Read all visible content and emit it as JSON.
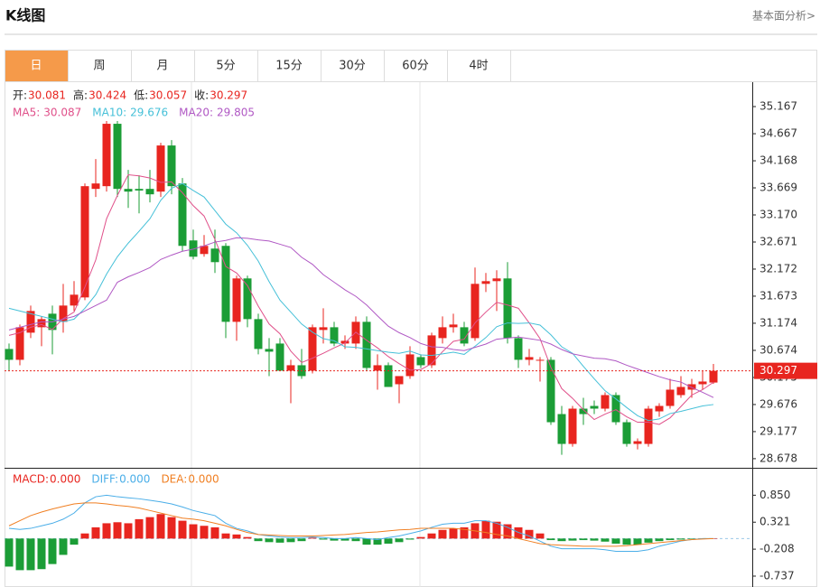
{
  "header": {
    "title": "K线图",
    "link": "基本面分析>"
  },
  "tabs": {
    "items": [
      "日",
      "周",
      "月",
      "5分",
      "15分",
      "30分",
      "60分",
      "4时"
    ],
    "active": 0
  },
  "chart_data": [
    {
      "type": "candlestick",
      "info": [
        {
          "label": "开:",
          "value": 30.081
        },
        {
          "label": "高:",
          "value": 30.424
        },
        {
          "label": "低:",
          "value": 30.057
        },
        {
          "label": "收:",
          "value": 30.297
        }
      ],
      "up_color": "#e8251f",
      "down_color": "#1b9d36",
      "open": [
        30.7,
        30.5,
        31.0,
        31.1,
        31.35,
        31.2,
        31.5,
        31.65,
        33.65,
        33.7,
        34.85,
        33.65,
        33.65,
        33.65,
        33.6,
        34.45,
        33.75,
        32.7,
        32.45,
        32.55,
        32.6,
        31.2,
        32.0,
        31.25,
        30.7,
        30.8,
        30.3,
        30.4,
        30.3,
        31.05,
        31.1,
        30.8,
        30.8,
        31.2,
        30.3,
        30.4,
        30.05,
        30.2,
        30.55,
        30.4,
        30.9,
        31.1,
        31.1,
        30.9,
        31.9,
        31.95,
        32.0,
        30.9,
        30.5,
        30.5,
        30.5,
        29.5,
        28.95,
        29.6,
        29.65,
        29.6,
        29.85,
        29.35,
        28.95,
        28.95,
        29.55,
        29.65,
        29.85,
        29.95,
        30.05,
        30.081
      ],
      "high": [
        30.8,
        31.15,
        31.5,
        31.3,
        31.5,
        31.9,
        31.95,
        33.75,
        34.2,
        34.9,
        34.9,
        34.0,
        33.9,
        34.0,
        34.5,
        34.55,
        33.85,
        32.9,
        32.8,
        32.9,
        32.65,
        32.05,
        32.05,
        31.35,
        30.9,
        30.9,
        30.5,
        30.7,
        31.15,
        31.45,
        31.2,
        30.95,
        31.3,
        31.3,
        30.6,
        30.45,
        30.2,
        30.75,
        30.6,
        31.0,
        31.3,
        31.35,
        31.2,
        32.2,
        32.1,
        32.15,
        32.3,
        30.95,
        30.7,
        30.55,
        30.55,
        29.65,
        29.65,
        29.8,
        29.75,
        29.9,
        29.9,
        29.4,
        29.05,
        29.65,
        29.7,
        30.15,
        30.2,
        30.15,
        30.3,
        30.424
      ],
      "low": [
        30.3,
        30.4,
        30.9,
        30.75,
        30.6,
        31.0,
        31.4,
        31.6,
        33.5,
        33.6,
        33.5,
        33.3,
        33.2,
        33.4,
        33.5,
        33.55,
        32.5,
        32.35,
        32.4,
        32.1,
        30.9,
        30.85,
        31.1,
        30.6,
        30.2,
        30.3,
        29.7,
        30.15,
        30.25,
        30.8,
        30.75,
        30.7,
        30.7,
        30.3,
        29.95,
        30.0,
        29.7,
        30.15,
        30.35,
        30.35,
        30.8,
        31.0,
        30.75,
        30.85,
        31.75,
        31.4,
        30.8,
        30.35,
        30.4,
        30.1,
        29.3,
        28.75,
        28.9,
        29.3,
        29.5,
        29.55,
        29.3,
        28.9,
        28.85,
        28.9,
        29.45,
        29.6,
        29.8,
        29.8,
        29.95,
        30.057
      ],
      "close": [
        30.5,
        31.1,
        31.4,
        31.25,
        31.05,
        31.5,
        31.7,
        33.7,
        33.75,
        34.85,
        33.65,
        33.6,
        33.62,
        33.55,
        34.45,
        33.7,
        32.6,
        32.4,
        32.6,
        32.3,
        31.2,
        32.0,
        31.25,
        30.7,
        30.65,
        30.3,
        30.4,
        30.2,
        31.1,
        31.1,
        30.8,
        30.85,
        31.2,
        30.35,
        30.4,
        30.0,
        30.2,
        30.6,
        30.4,
        30.95,
        31.1,
        31.15,
        30.8,
        31.9,
        31.95,
        32.0,
        30.9,
        30.5,
        30.55,
        30.5,
        29.35,
        28.95,
        29.6,
        29.5,
        29.6,
        29.85,
        29.35,
        28.95,
        29.0,
        29.6,
        29.65,
        29.95,
        30.0,
        30.05,
        30.1,
        30.297
      ],
      "series": [
        {
          "name": "MA5:",
          "color": "#e0508a",
          "current": 30.087,
          "values": [
            30.95,
            31.0,
            31.1,
            31.15,
            31.06,
            31.26,
            31.38,
            31.84,
            32.34,
            33.1,
            33.53,
            33.91,
            33.89,
            33.85,
            33.77,
            33.78,
            33.58,
            33.34,
            33.15,
            32.72,
            32.22,
            32.1,
            31.87,
            31.49,
            31.16,
            30.98,
            30.66,
            30.45,
            30.53,
            30.62,
            30.72,
            30.81,
            31.01,
            30.86,
            30.72,
            30.56,
            30.43,
            30.31,
            30.32,
            30.43,
            30.65,
            30.84,
            30.88,
            31.18,
            31.38,
            31.56,
            31.51,
            31.45,
            31.18,
            30.89,
            30.36,
            29.97,
            29.79,
            29.58,
            29.4,
            29.5,
            29.58,
            29.45,
            29.35,
            29.35,
            29.31,
            29.43,
            29.64,
            29.85,
            29.95,
            30.087
          ]
        },
        {
          "name": "MA10:",
          "color": "#45c0d8",
          "current": 29.676,
          "values": [
            31.45,
            31.4,
            31.35,
            31.3,
            31.25,
            31.2,
            31.25,
            31.45,
            31.7,
            32.08,
            32.4,
            32.65,
            32.87,
            33.1,
            33.44,
            33.66,
            33.75,
            33.62,
            33.5,
            33.25,
            33.0,
            32.84,
            32.61,
            32.32,
            31.94,
            31.6,
            31.38,
            31.16,
            31.01,
            30.89,
            30.85,
            30.74,
            30.73,
            30.7,
            30.67,
            30.64,
            30.62,
            30.66,
            30.59,
            30.58,
            30.61,
            30.64,
            30.6,
            30.75,
            30.91,
            31.11,
            31.18,
            31.17,
            31.18,
            31.14,
            30.96,
            30.74,
            30.62,
            30.38,
            30.15,
            29.93,
            29.78,
            29.62,
            29.47,
            29.38,
            29.41,
            29.51,
            29.55,
            29.6,
            29.65,
            29.676
          ]
        },
        {
          "name": "MA20:",
          "color": "#b058c4",
          "current": 29.805,
          "values": [
            31.05,
            31.1,
            31.15,
            31.2,
            31.2,
            31.25,
            31.3,
            31.4,
            31.5,
            31.6,
            31.93,
            32.03,
            32.11,
            32.2,
            32.35,
            32.43,
            32.5,
            32.54,
            32.6,
            32.67,
            32.7,
            32.75,
            32.74,
            32.71,
            32.69,
            32.63,
            32.57,
            32.39,
            32.26,
            32.07,
            31.93,
            31.79,
            31.67,
            31.51,
            31.31,
            31.12,
            31.0,
            30.91,
            30.8,
            30.74,
            30.73,
            30.69,
            30.67,
            30.73,
            30.79,
            30.88,
            30.9,
            30.92,
            30.89,
            30.86,
            30.79,
            30.69,
            30.61,
            30.57,
            30.53,
            30.52,
            30.48,
            30.4,
            30.33,
            30.26,
            30.19,
            30.13,
            30.09,
            29.99,
            29.9,
            29.805
          ]
        }
      ],
      "last_price": 30.297,
      "ylim": [
        28.51,
        35.6
      ],
      "yticks": [
        35.167,
        34.667,
        34.168,
        33.669,
        {
          "value": 33.17,
          "label": "33.170"
        },
        32.671,
        32.172,
        31.673,
        31.174,
        30.674,
        30.175,
        29.676,
        29.177,
        28.678
      ]
    },
    {
      "type": "macd",
      "up_color": "#e8251f",
      "down_color": "#1b9d36",
      "series": [
        {
          "name": "MACD:",
          "color": "#e8251f",
          "current": {
            "value": 0,
            "label": "0.000"
          },
          "values": [
            -0.55,
            -0.62,
            -0.62,
            -0.6,
            -0.5,
            -0.32,
            -0.12,
            0.1,
            0.22,
            0.3,
            0.32,
            0.3,
            0.38,
            0.42,
            0.48,
            0.42,
            0.35,
            0.28,
            0.25,
            0.22,
            0.1,
            0.08,
            0.03,
            -0.05,
            -0.07,
            -0.08,
            -0.07,
            -0.05,
            0.02,
            -0.02,
            -0.04,
            -0.04,
            -0.05,
            -0.12,
            -0.12,
            -0.1,
            -0.07,
            -0.02,
            0.03,
            0.1,
            0.17,
            0.2,
            0.22,
            0.3,
            0.35,
            0.33,
            0.28,
            0.22,
            0.17,
            0.1,
            -0.03,
            -0.05,
            -0.04,
            -0.03,
            -0.04,
            -0.06,
            -0.1,
            -0.12,
            -0.12,
            -0.08,
            -0.05,
            -0.03,
            -0.02,
            -0.01,
            -0.01,
            0
          ]
        },
        {
          "name": "DIFF:",
          "color": "#4aaee8",
          "current": {
            "value": 0,
            "label": "0.000"
          },
          "values": [
            0.2,
            0.18,
            0.2,
            0.25,
            0.3,
            0.38,
            0.5,
            0.7,
            0.82,
            0.85,
            0.82,
            0.8,
            0.78,
            0.75,
            0.72,
            0.68,
            0.62,
            0.55,
            0.5,
            0.45,
            0.3,
            0.2,
            0.15,
            0.08,
            0.05,
            0.03,
            0.02,
            0.02,
            0.03,
            0.02,
            0,
            0,
            0.02,
            0,
            -0.02,
            0.02,
            0.05,
            0.1,
            0.15,
            0.22,
            0.28,
            0.3,
            0.3,
            0.35,
            0.35,
            0.3,
            0.22,
            0.12,
            0.05,
            -0.05,
            -0.15,
            -0.2,
            -0.2,
            -0.2,
            -0.2,
            -0.22,
            -0.25,
            -0.25,
            -0.25,
            -0.22,
            -0.15,
            -0.1,
            -0.05,
            -0.02,
            0,
            0
          ]
        },
        {
          "name": "DEA:",
          "color": "#f07f22",
          "current": {
            "value": 0,
            "label": "0.000"
          },
          "values": [
            0.25,
            0.35,
            0.45,
            0.52,
            0.58,
            0.63,
            0.68,
            0.7,
            0.7,
            0.68,
            0.65,
            0.63,
            0.6,
            0.55,
            0.5,
            0.45,
            0.4,
            0.38,
            0.35,
            0.3,
            0.25,
            0.18,
            0.12,
            0.08,
            0.07,
            0.06,
            0.05,
            0.05,
            0.05,
            0.06,
            0.07,
            0.08,
            0.1,
            0.12,
            0.13,
            0.15,
            0.17,
            0.18,
            0.2,
            0.2,
            0.2,
            0.2,
            0.18,
            0.15,
            0.12,
            0.08,
            0.05,
            0,
            -0.05,
            -0.1,
            -0.12,
            -0.13,
            -0.14,
            -0.15,
            -0.15,
            -0.15,
            -0.15,
            -0.14,
            -0.12,
            -0.1,
            -0.08,
            -0.06,
            -0.04,
            -0.02,
            -0.01,
            0
          ]
        }
      ],
      "ylim": [
        -0.95,
        1.37
      ],
      "yticks": [
        {
          "value": 0.85,
          "label": "0.850"
        },
        0.321,
        -0.208,
        -0.737
      ]
    }
  ]
}
